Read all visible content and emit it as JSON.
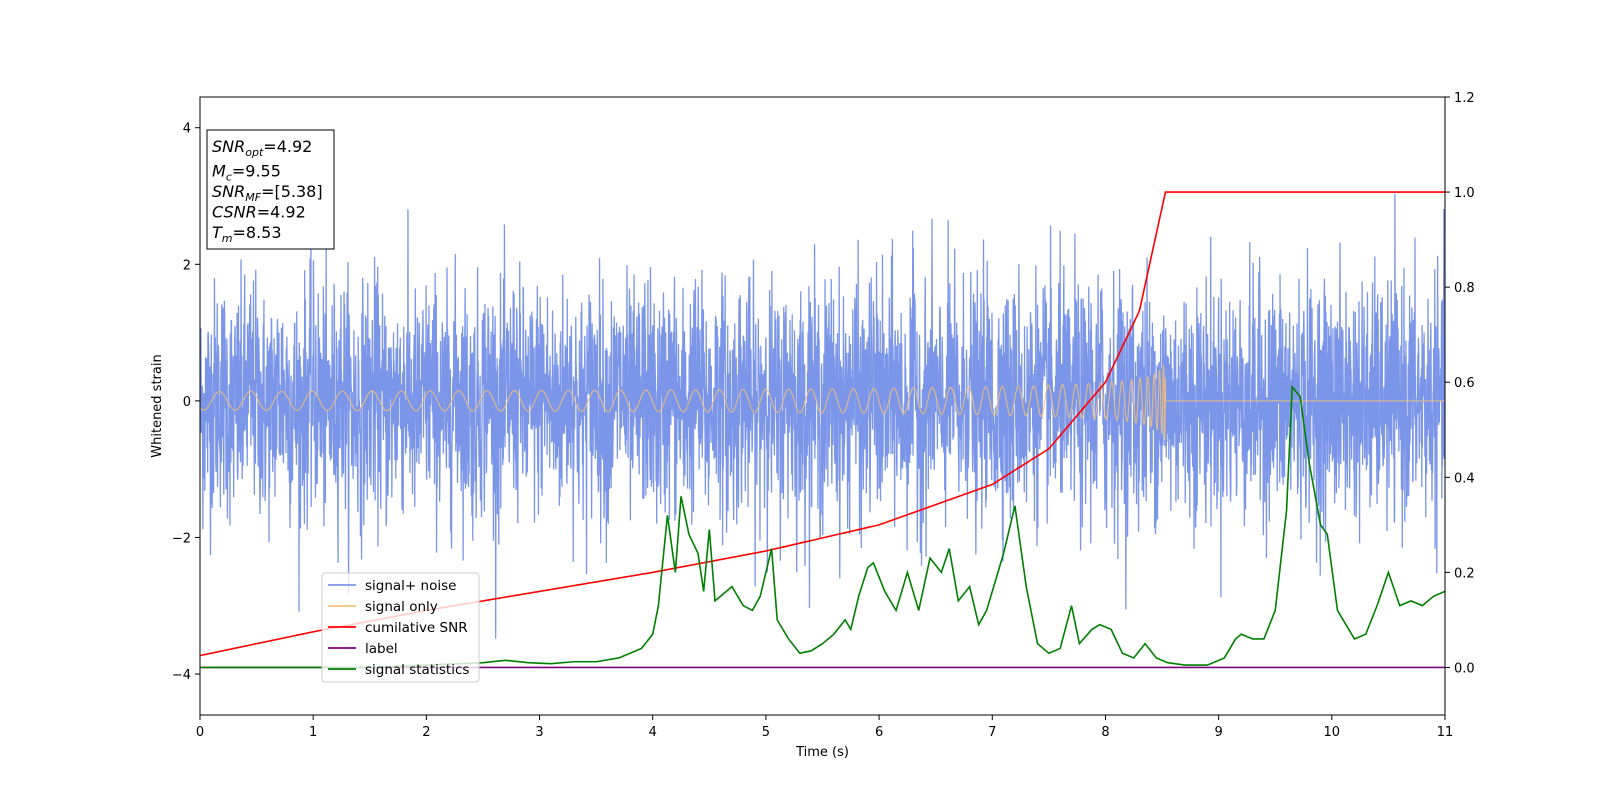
{
  "chart_data": {
    "type": "line",
    "xlabel": "Time (s)",
    "ylabel": "Whitened strain",
    "xlim": [
      0,
      11
    ],
    "ylim": [
      -4.6,
      4.45
    ],
    "y2lim": [
      -0.1,
      1.2
    ],
    "x_ticks": [
      0,
      1,
      2,
      3,
      4,
      5,
      6,
      7,
      8,
      9,
      10,
      11
    ],
    "y_ticks": [
      -4,
      -2,
      0,
      2,
      4
    ],
    "y2_ticks": [
      "0.0",
      "0.2",
      "0.4",
      "0.6",
      "0.8",
      "1.0",
      "1.2"
    ],
    "legend_position": "lower-left",
    "info_box": {
      "position": "top-left",
      "lines": [
        {
          "main": "SNR",
          "sub": "opt",
          "rest": "=4.92"
        },
        {
          "main": "M",
          "sub": "c",
          "rest": "=9.55"
        },
        {
          "main": "SNR",
          "sub": "MF",
          "rest": "=[5.38]"
        },
        {
          "main": "CSNR",
          "sub": "",
          "rest": "=4.92"
        },
        {
          "main": "T",
          "sub": "m",
          "rest": "=8.53"
        }
      ]
    },
    "series": [
      {
        "name": "signal+ noise",
        "color": "#7b96e8",
        "axis": "left",
        "kind": "noise",
        "std": 0.85,
        "max_abs": 4.05,
        "x_range": [
          0,
          11
        ]
      },
      {
        "name": "signal only",
        "color": "#f5c07a",
        "axis": "left",
        "kind": "chirp",
        "merger_time": 8.53,
        "peak_amplitude": 0.62,
        "end_time": 11
      },
      {
        "name": "cumilative SNR",
        "color": "#ff0000",
        "axis": "right",
        "x": [
          0,
          1,
          2,
          3,
          4,
          5,
          6,
          7,
          7.5,
          8,
          8.3,
          8.53,
          11
        ],
        "y": [
          0.025,
          0.075,
          0.12,
          0.16,
          0.2,
          0.245,
          0.3,
          0.385,
          0.46,
          0.6,
          0.75,
          1.0,
          1.0
        ]
      },
      {
        "name": "label",
        "color": "#800080",
        "axis": "right",
        "x": [
          0,
          11
        ],
        "y": [
          0.0,
          0.0
        ]
      },
      {
        "name": "signal statistics",
        "color": "#008000",
        "axis": "right",
        "x": [
          0,
          0.5,
          1,
          1.5,
          2,
          2.5,
          2.7,
          2.9,
          3.1,
          3.3,
          3.5,
          3.7,
          3.9,
          4.0,
          4.05,
          4.13,
          4.2,
          4.25,
          4.32,
          4.4,
          4.45,
          4.5,
          4.55,
          4.6,
          4.7,
          4.8,
          4.88,
          4.95,
          5.05,
          5.1,
          5.2,
          5.3,
          5.4,
          5.5,
          5.6,
          5.7,
          5.75,
          5.82,
          5.9,
          5.95,
          6.05,
          6.15,
          6.25,
          6.35,
          6.45,
          6.55,
          6.62,
          6.7,
          6.8,
          6.88,
          6.95,
          7.1,
          7.2,
          7.3,
          7.4,
          7.5,
          7.6,
          7.7,
          7.77,
          7.88,
          7.95,
          8.05,
          8.15,
          8.25,
          8.35,
          8.45,
          8.55,
          8.7,
          8.9,
          9.05,
          9.15,
          9.2,
          9.3,
          9.4,
          9.5,
          9.6,
          9.65,
          9.72,
          9.8,
          9.9,
          9.96,
          10.05,
          10.2,
          10.3,
          10.4,
          10.5,
          10.6,
          10.7,
          10.8,
          10.9,
          11.0
        ],
        "y": [
          0.0,
          0.0,
          0.0,
          0.0,
          0.005,
          0.01,
          0.015,
          0.01,
          0.008,
          0.012,
          0.012,
          0.02,
          0.04,
          0.07,
          0.13,
          0.32,
          0.2,
          0.36,
          0.28,
          0.24,
          0.16,
          0.29,
          0.14,
          0.15,
          0.17,
          0.13,
          0.12,
          0.15,
          0.25,
          0.1,
          0.06,
          0.03,
          0.035,
          0.05,
          0.07,
          0.1,
          0.08,
          0.15,
          0.21,
          0.22,
          0.16,
          0.12,
          0.2,
          0.12,
          0.23,
          0.2,
          0.25,
          0.14,
          0.17,
          0.09,
          0.12,
          0.24,
          0.34,
          0.17,
          0.05,
          0.03,
          0.04,
          0.13,
          0.05,
          0.08,
          0.09,
          0.08,
          0.03,
          0.02,
          0.05,
          0.02,
          0.01,
          0.005,
          0.005,
          0.02,
          0.06,
          0.07,
          0.06,
          0.06,
          0.12,
          0.33,
          0.59,
          0.57,
          0.43,
          0.3,
          0.28,
          0.12,
          0.06,
          0.07,
          0.13,
          0.2,
          0.13,
          0.14,
          0.13,
          0.15,
          0.16
        ]
      }
    ]
  }
}
